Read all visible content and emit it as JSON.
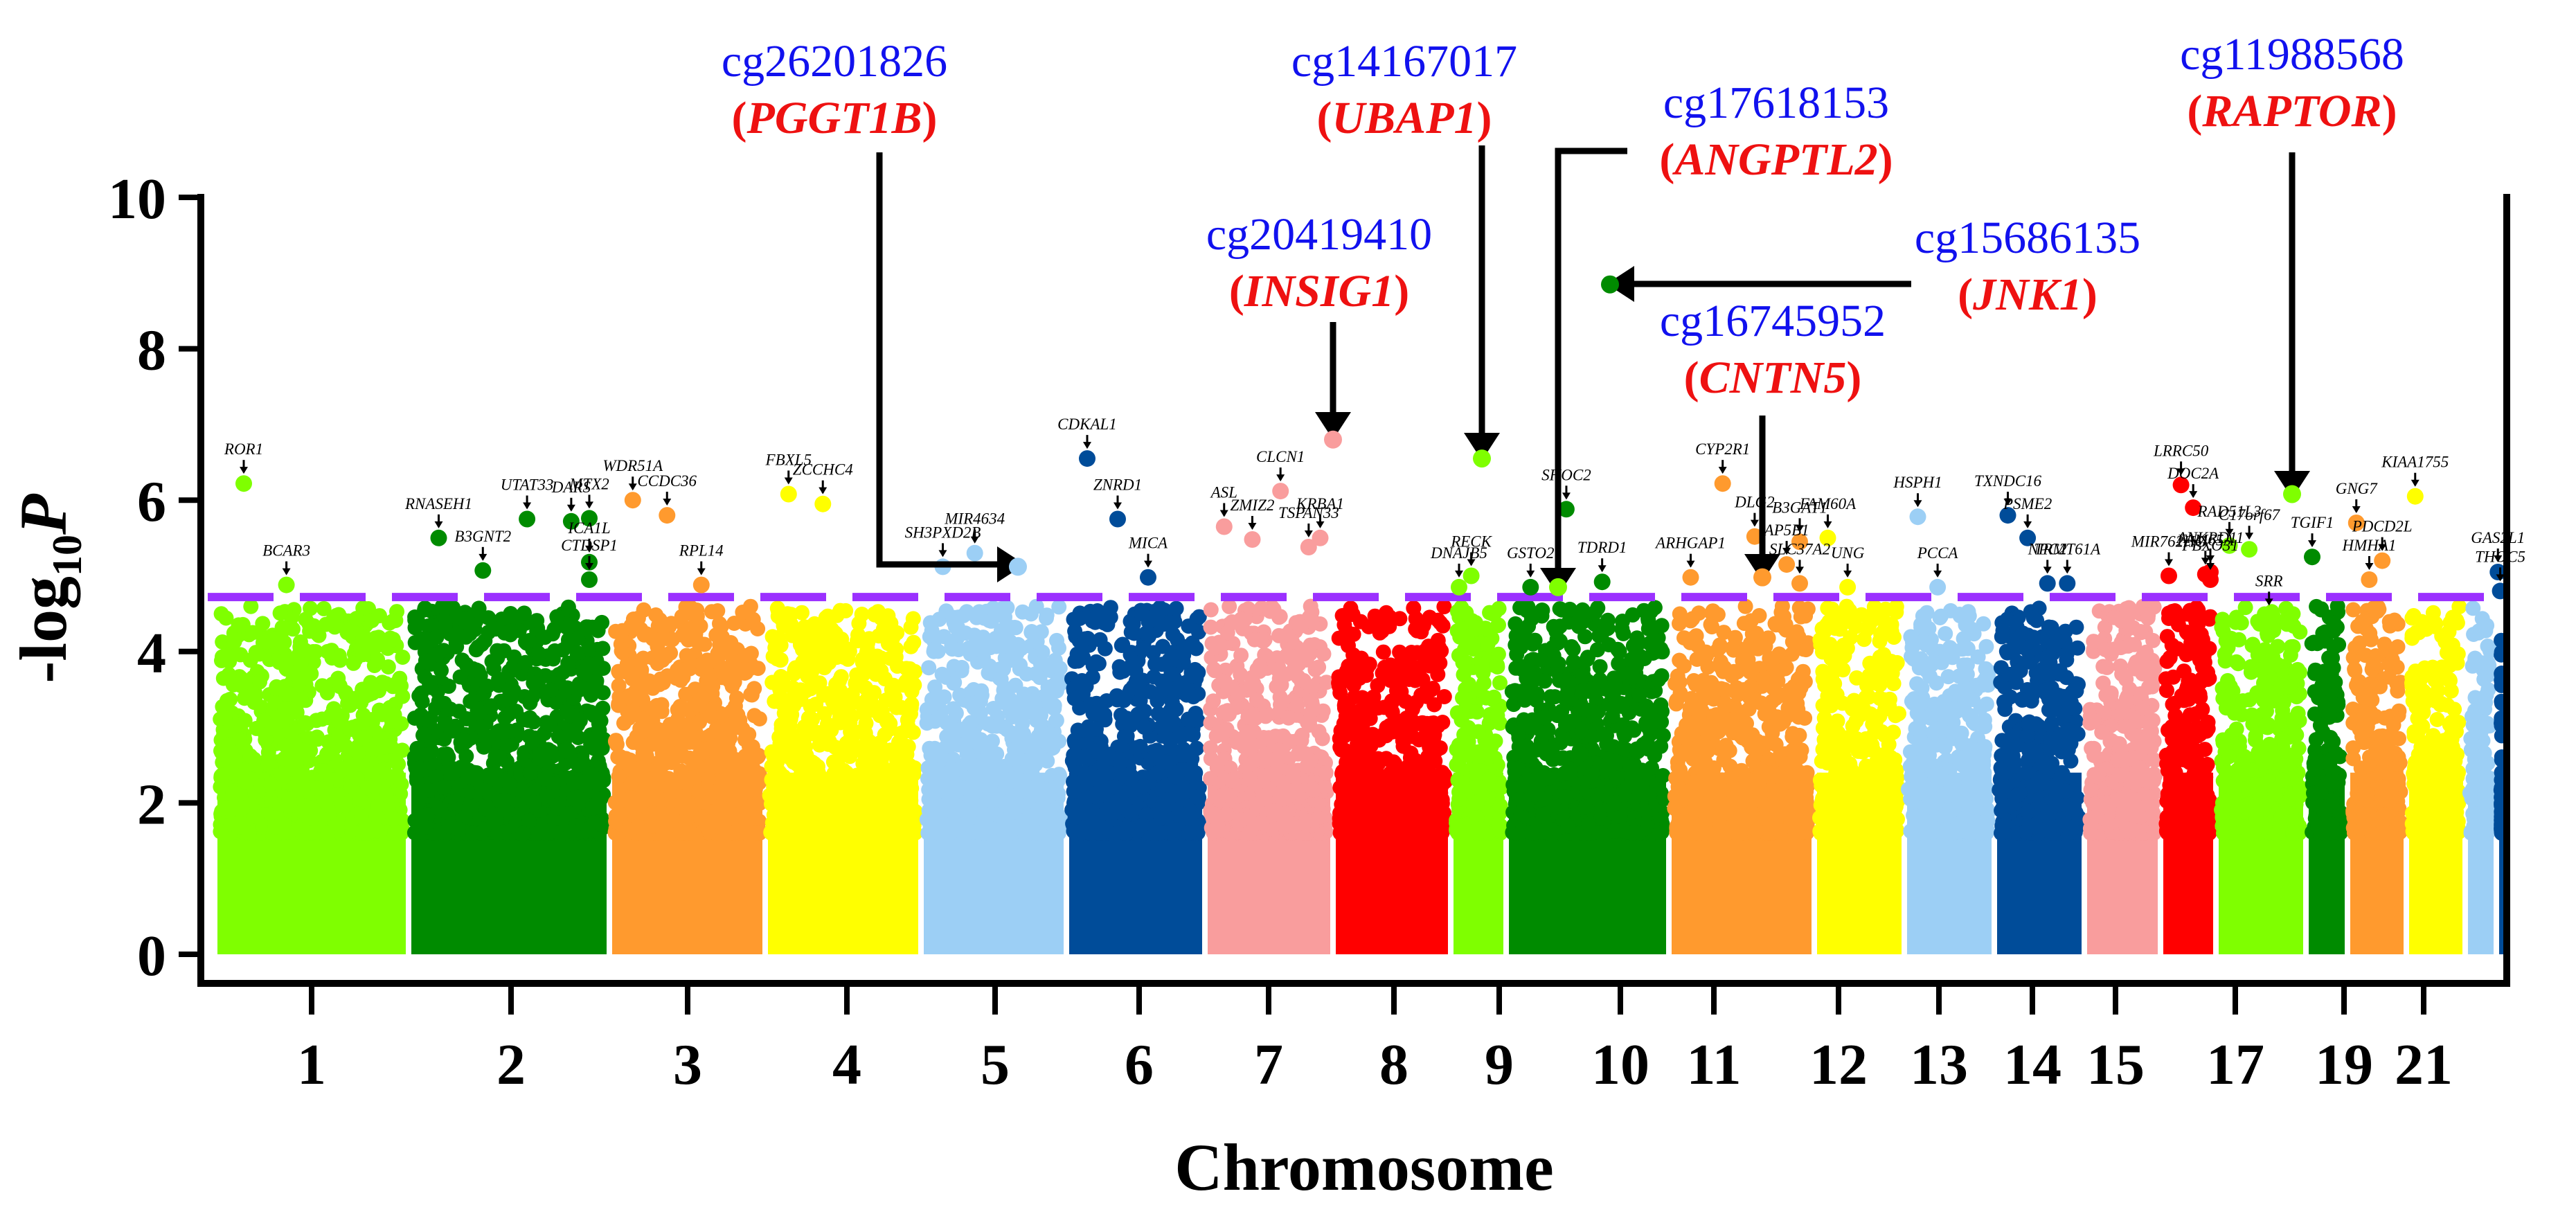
{
  "chart_data": {
    "type": "scatter",
    "subtype": "manhattan",
    "title": "",
    "xlabel": "Chromosome",
    "ylabel": "-log10P",
    "ylabel_parts": {
      "prefix": "-log",
      "sub": "10",
      "var": "P"
    },
    "ylim": [
      0,
      10
    ],
    "yticks": [
      0,
      2,
      4,
      6,
      8,
      10
    ],
    "significance_threshold": 4.72,
    "threshold_color": "#9b30ff",
    "grid": false,
    "xtick_labels": [
      "1",
      "2",
      "3",
      "4",
      "5",
      "6",
      "7",
      "8",
      "9",
      "10",
      "11",
      "12",
      "13",
      "14",
      "15",
      "17",
      "19",
      "21"
    ],
    "chromosomes": [
      {
        "chr": "1",
        "color": "#7fff00",
        "peak": 6.2
      },
      {
        "chr": "2",
        "color": "#008b00",
        "peak": 5.8
      },
      {
        "chr": "3",
        "color": "#ff9a2e",
        "peak": 6.0
      },
      {
        "chr": "4",
        "color": "#ffff00",
        "peak": 6.1
      },
      {
        "chr": "5",
        "color": "#9ccff5",
        "peak": 5.3
      },
      {
        "chr": "6",
        "color": "#004c99",
        "peak": 6.6
      },
      {
        "chr": "7",
        "color": "#f99d9d",
        "peak": 6.8
      },
      {
        "chr": "8",
        "color": "#ff0000",
        "peak": 4.8
      },
      {
        "chr": "9",
        "color": "#7fff00",
        "peak": 6.6
      },
      {
        "chr": "10",
        "color": "#008b00",
        "peak": 8.85
      },
      {
        "chr": "11",
        "color": "#ff9a2e",
        "peak": 6.2
      },
      {
        "chr": "12",
        "color": "#ffff00",
        "peak": 5.5
      },
      {
        "chr": "13",
        "color": "#9ccff5",
        "peak": 5.8
      },
      {
        "chr": "14",
        "color": "#004c99",
        "peak": 5.8
      },
      {
        "chr": "15",
        "color": "#f99d9d",
        "peak": 5.0
      },
      {
        "chr": "16",
        "color": "#ff0000",
        "peak": 6.2
      },
      {
        "chr": "17",
        "color": "#7fff00",
        "peak": 6.1
      },
      {
        "chr": "18",
        "color": "#008b00",
        "peak": 5.3
      },
      {
        "chr": "19",
        "color": "#ff9a2e",
        "peak": 5.7
      },
      {
        "chr": "20",
        "color": "#ffff00",
        "peak": 6.05
      },
      {
        "chr": "21",
        "color": "#9ccff5",
        "peak": 5.1
      },
      {
        "chr": "22",
        "color": "#004c99",
        "peak": 5.05
      }
    ],
    "annotated_genes": [
      {
        "gene": "ROR1",
        "chr": "1",
        "value": 6.22,
        "color": "#7fff00"
      },
      {
        "gene": "BCAR3",
        "chr": "1",
        "value": 4.88,
        "color": "#7fff00"
      },
      {
        "gene": "RNASEH1",
        "chr": "2",
        "value": 5.5,
        "color": "#008b00"
      },
      {
        "gene": "B3GNT2",
        "chr": "2",
        "value": 5.07,
        "color": "#008b00"
      },
      {
        "gene": "UTAT33",
        "chr": "2",
        "value": 5.75,
        "color": "#008b00"
      },
      {
        "gene": "DARS",
        "chr": "2",
        "value": 5.72,
        "color": "#008b00"
      },
      {
        "gene": "MTX2",
        "chr": "2",
        "value": 5.76,
        "color": "#008b00"
      },
      {
        "gene": "ICA1L",
        "chr": "2",
        "value": 5.18,
        "color": "#008b00"
      },
      {
        "gene": "CTDSP1",
        "chr": "2",
        "value": 4.95,
        "color": "#008b00"
      },
      {
        "gene": "WDR51A",
        "chr": "3",
        "value": 6.0,
        "color": "#ff9a2e"
      },
      {
        "gene": "CCDC36",
        "chr": "3",
        "value": 5.8,
        "color": "#ff9a2e"
      },
      {
        "gene": "RPL14",
        "chr": "3",
        "value": 4.88,
        "color": "#ff9a2e"
      },
      {
        "gene": "FBXL5",
        "chr": "4",
        "value": 6.08,
        "color": "#ffff00"
      },
      {
        "gene": "ZCCHC4",
        "chr": "4",
        "value": 5.95,
        "color": "#ffff00"
      },
      {
        "gene": "SH3PXD2B",
        "chr": "5",
        "value": 5.12,
        "color": "#9ccff5"
      },
      {
        "gene": "MIR4634",
        "chr": "5",
        "value": 5.3,
        "color": "#9ccff5"
      },
      {
        "gene": "CDKAL1",
        "chr": "6",
        "value": 6.55,
        "color": "#004c99"
      },
      {
        "gene": "ZNRD1",
        "chr": "6",
        "value": 5.75,
        "color": "#004c99"
      },
      {
        "gene": "MICA",
        "chr": "6",
        "value": 4.98,
        "color": "#004c99"
      },
      {
        "gene": "ASL",
        "chr": "7",
        "value": 5.65,
        "color": "#f99d9d"
      },
      {
        "gene": "ZMIZ2",
        "chr": "7",
        "value": 5.48,
        "color": "#f99d9d"
      },
      {
        "gene": "CLCN1",
        "chr": "7",
        "value": 6.12,
        "color": "#f99d9d"
      },
      {
        "gene": "TSPAN33",
        "chr": "7",
        "value": 5.38,
        "color": "#f99d9d"
      },
      {
        "gene": "KRBA1",
        "chr": "7",
        "value": 5.5,
        "color": "#f99d9d"
      },
      {
        "gene": "DNAJB5",
        "chr": "9",
        "value": 4.85,
        "color": "#7fff00"
      },
      {
        "gene": "RECK",
        "chr": "9",
        "value": 5.0,
        "color": "#7fff00"
      },
      {
        "gene": "GSTO2",
        "chr": "10",
        "value": 4.85,
        "color": "#008b00"
      },
      {
        "gene": "SHOC2",
        "chr": "10",
        "value": 5.88,
        "color": "#008b00"
      },
      {
        "gene": "ARHGAP1",
        "chr": "11",
        "value": 4.98,
        "color": "#ff9a2e"
      },
      {
        "gene": "TDRD1",
        "chr": "10",
        "value": 4.92,
        "color": "#008b00"
      },
      {
        "gene": "CYP2R1",
        "chr": "11",
        "value": 6.22,
        "color": "#ff9a2e"
      },
      {
        "gene": "DLG2",
        "chr": "11",
        "value": 5.52,
        "color": "#ff9a2e"
      },
      {
        "gene": "AP5B1",
        "chr": "11",
        "value": 5.15,
        "color": "#ff9a2e"
      },
      {
        "gene": "B3GAT1",
        "chr": "11",
        "value": 5.45,
        "color": "#ff9a2e"
      },
      {
        "gene": "SLC37A2",
        "chr": "11",
        "value": 4.9,
        "color": "#ff9a2e"
      },
      {
        "gene": "FAM60A",
        "chr": "12",
        "value": 5.5,
        "color": "#ffff00"
      },
      {
        "gene": "UNG",
        "chr": "12",
        "value": 4.85,
        "color": "#ffff00"
      },
      {
        "gene": "HSPH1",
        "chr": "13",
        "value": 5.78,
        "color": "#9ccff5"
      },
      {
        "gene": "PCCA",
        "chr": "13",
        "value": 4.85,
        "color": "#9ccff5"
      },
      {
        "gene": "TXNDC16",
        "chr": "14",
        "value": 5.8,
        "color": "#004c99"
      },
      {
        "gene": "PSME2",
        "chr": "14",
        "value": 5.5,
        "color": "#004c99"
      },
      {
        "gene": "NPC2",
        "chr": "14",
        "value": 4.9,
        "color": "#004c99"
      },
      {
        "gene": "MIR762HG",
        "chr": "16",
        "value": 5.0,
        "color": "#ff0000"
      },
      {
        "gene": "TRMT61A",
        "chr": "14",
        "value": 4.9,
        "color": "#004c99"
      },
      {
        "gene": "LRRC50",
        "chr": "16",
        "value": 6.2,
        "color": "#ff0000"
      },
      {
        "gene": "DOC2A",
        "chr": "16",
        "value": 5.9,
        "color": "#ff0000"
      },
      {
        "gene": "RAD51L3",
        "chr": "17",
        "value": 5.4,
        "color": "#7fff00"
      },
      {
        "gene": "FAM65A",
        "chr": "16",
        "value": 5.02,
        "color": "#ff0000"
      },
      {
        "gene": "C17orf67",
        "chr": "17",
        "value": 5.35,
        "color": "#7fff00"
      },
      {
        "gene": "ANKRD11",
        "chr": "16",
        "value": 5.05,
        "color": "#ff0000"
      },
      {
        "gene": "FBXO31",
        "chr": "16",
        "value": 4.95,
        "color": "#ff0000"
      },
      {
        "gene": "SRR",
        "chr": "17",
        "value": 4.48,
        "color": "#7fff00"
      },
      {
        "gene": "GNG7",
        "chr": "19",
        "value": 5.7,
        "color": "#ff9a2e"
      },
      {
        "gene": "TGIF1",
        "chr": "18",
        "value": 5.25,
        "color": "#008b00"
      },
      {
        "gene": "HMHA1",
        "chr": "19",
        "value": 4.95,
        "color": "#ff9a2e"
      },
      {
        "gene": "KIAA1755",
        "chr": "20",
        "value": 6.05,
        "color": "#ffff00"
      },
      {
        "gene": "PDCD2L",
        "chr": "19",
        "value": 5.2,
        "color": "#ff9a2e"
      },
      {
        "gene": "GAS2L1",
        "chr": "22",
        "value": 5.05,
        "color": "#004c99"
      },
      {
        "gene": "THOC5",
        "chr": "22",
        "value": 4.8,
        "color": "#004c99"
      }
    ],
    "highlighted_probes": [
      {
        "probe": "cg26201826",
        "gene": "PGGT1B",
        "chr": "5",
        "value": 5.12
      },
      {
        "probe": "cg14167017",
        "gene": "UBAP1",
        "chr": "9",
        "value": 6.55
      },
      {
        "probe": "cg20419410",
        "gene": "INSIG1",
        "chr": "7",
        "value": 6.8
      },
      {
        "probe": "cg17618153",
        "gene": "ANGPTL2",
        "chr": "9",
        "value": 4.85
      },
      {
        "probe": "cg15686135",
        "gene": "JNK1",
        "chr": "10",
        "value": 8.85
      },
      {
        "probe": "cg16745952",
        "gene": "CNTN5",
        "chr": "11",
        "value": 4.98
      },
      {
        "probe": "cg11988568",
        "gene": "RAPTOR",
        "chr": "17",
        "value": 6.08
      }
    ]
  }
}
